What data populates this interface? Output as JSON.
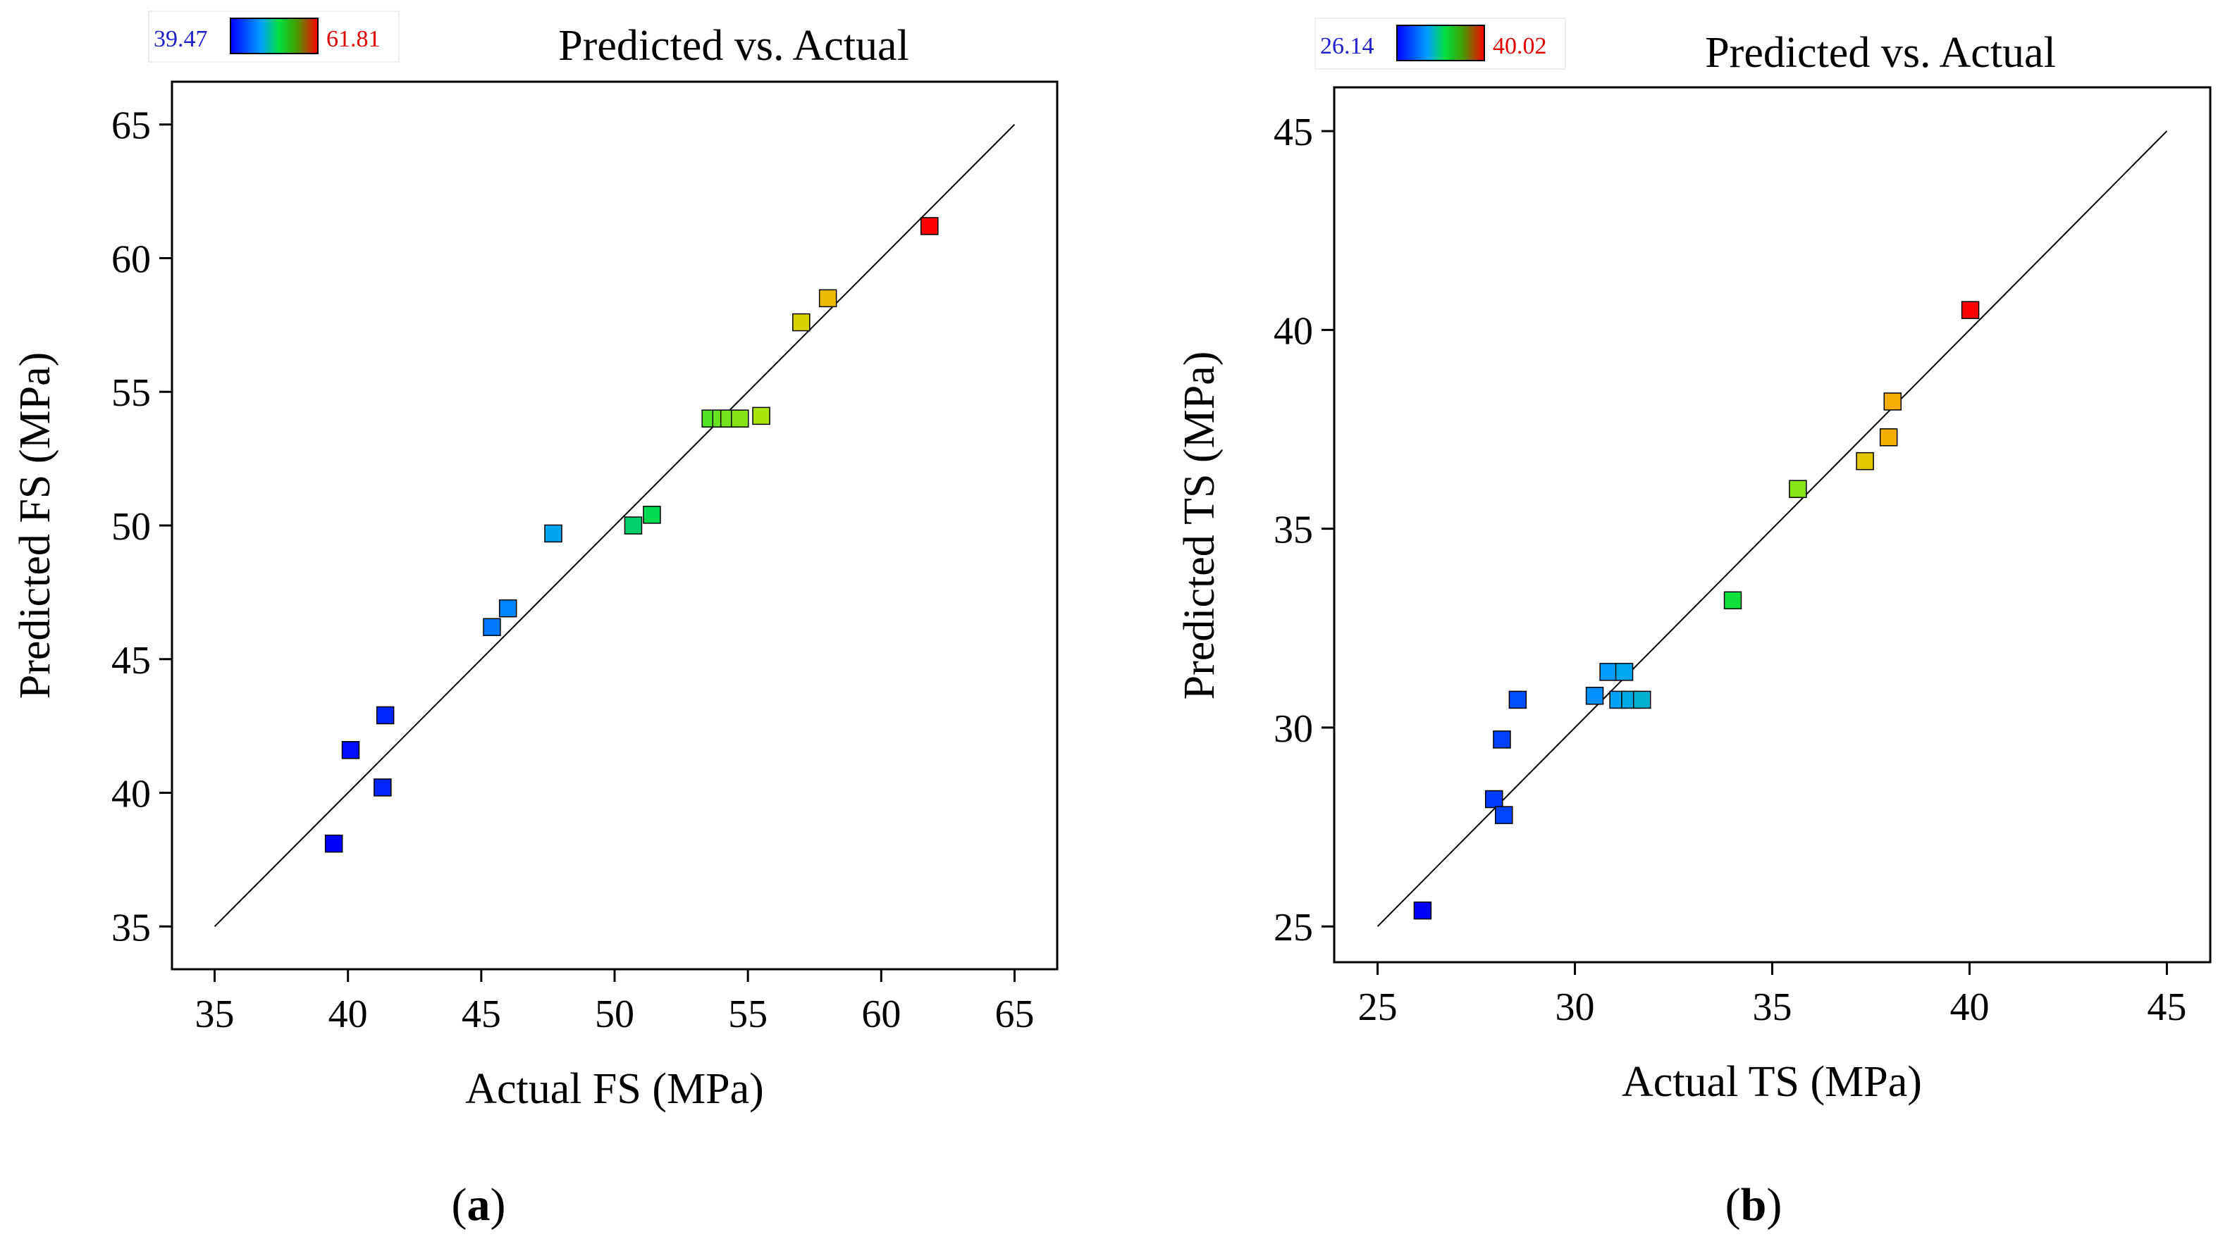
{
  "chart_data": [
    {
      "type": "scatter",
      "panel_label": "a",
      "title": "Predicted vs. Actual",
      "xlabel": "Actual FS (MPa)",
      "ylabel": "Predicted FS (MPa)",
      "xlim": [
        33.4,
        66.6
      ],
      "ylim": [
        33.4,
        66.6
      ],
      "xticks": [
        "35",
        "40",
        "45",
        "50",
        "55",
        "60",
        "65"
      ],
      "yticks": [
        "35",
        "40",
        "45",
        "50",
        "55",
        "60",
        "65"
      ],
      "reference_line": [
        [
          35,
          35
        ],
        [
          65,
          65
        ]
      ],
      "colorbar": {
        "min_label": "39.47",
        "max_label": "61.81",
        "min": 39.47,
        "max": 61.81
      },
      "points": [
        {
          "x": 39.47,
          "y": 38.1
        },
        {
          "x": 40.1,
          "y": 41.6
        },
        {
          "x": 41.3,
          "y": 40.2
        },
        {
          "x": 41.4,
          "y": 42.9
        },
        {
          "x": 45.4,
          "y": 46.2
        },
        {
          "x": 46.0,
          "y": 46.9
        },
        {
          "x": 47.7,
          "y": 49.7
        },
        {
          "x": 50.7,
          "y": 50.0
        },
        {
          "x": 51.4,
          "y": 50.4
        },
        {
          "x": 53.6,
          "y": 54.0
        },
        {
          "x": 54.0,
          "y": 54.0
        },
        {
          "x": 54.3,
          "y": 54.0
        },
        {
          "x": 54.7,
          "y": 54.0
        },
        {
          "x": 55.5,
          "y": 54.1
        },
        {
          "x": 57.0,
          "y": 57.6
        },
        {
          "x": 58.0,
          "y": 58.5
        },
        {
          "x": 61.81,
          "y": 61.2
        }
      ],
      "grid": false
    },
    {
      "type": "scatter",
      "panel_label": "b",
      "title": "Predicted vs. Actual",
      "xlabel": "Actual TS (MPa)",
      "ylabel": "Predicted TS (MPa)",
      "xlim": [
        23.9,
        46.1
      ],
      "ylim": [
        24.1,
        46.1
      ],
      "xticks": [
        "25",
        "30",
        "35",
        "40",
        "45"
      ],
      "yticks": [
        "25",
        "30",
        "35",
        "40",
        "45"
      ],
      "reference_line": [
        [
          25,
          25
        ],
        [
          45,
          45
        ]
      ],
      "colorbar": {
        "min_label": "26.14",
        "max_label": "40.02",
        "min": 26.14,
        "max": 40.02
      },
      "points": [
        {
          "x": 26.14,
          "y": 25.4
        },
        {
          "x": 27.95,
          "y": 28.2
        },
        {
          "x": 28.15,
          "y": 29.7
        },
        {
          "x": 28.2,
          "y": 27.8
        },
        {
          "x": 28.55,
          "y": 30.7
        },
        {
          "x": 30.5,
          "y": 30.8
        },
        {
          "x": 30.85,
          "y": 31.4
        },
        {
          "x": 31.1,
          "y": 30.7
        },
        {
          "x": 31.25,
          "y": 31.4
        },
        {
          "x": 31.4,
          "y": 30.7
        },
        {
          "x": 31.7,
          "y": 30.7
        },
        {
          "x": 34.0,
          "y": 33.2
        },
        {
          "x": 35.65,
          "y": 36.0
        },
        {
          "x": 37.35,
          "y": 36.7
        },
        {
          "x": 37.95,
          "y": 37.3
        },
        {
          "x": 38.05,
          "y": 38.2
        },
        {
          "x": 40.02,
          "y": 40.5
        }
      ],
      "grid": false
    }
  ]
}
